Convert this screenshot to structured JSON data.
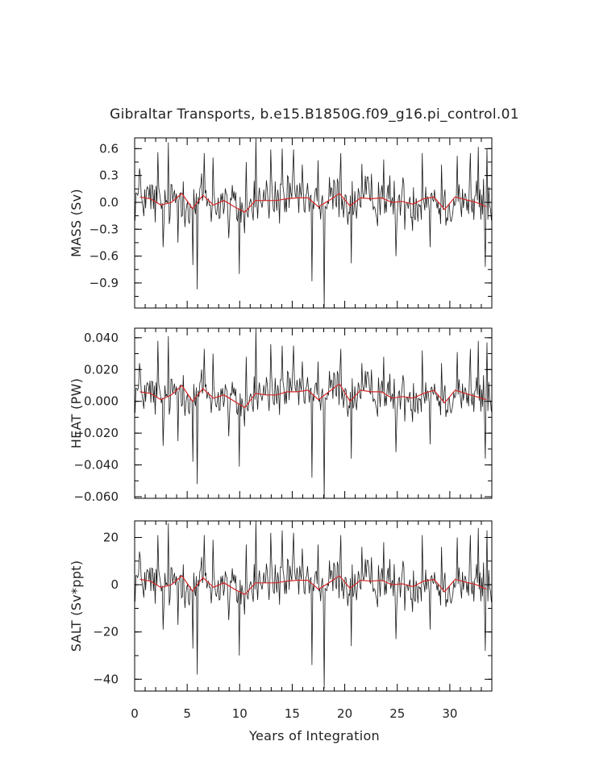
{
  "chart_data": {
    "title": "Gibraltar Transports, b.e15.B1850G.f09_g16.pi_control.01",
    "xlabel": "Years of Integration",
    "x_ticks": [
      "0",
      "5",
      "10",
      "15",
      "20",
      "25",
      "30"
    ],
    "xlim": [
      0,
      34
    ],
    "colors": {
      "monthly": "#1a1a1a",
      "annual": "#d62728"
    },
    "panels": [
      {
        "type": "line",
        "ylabel": "MASS (Sv)",
        "ylim": [
          -1.18,
          0.72
        ],
        "y_ticks": [
          {
            "value": 0.6,
            "label": "0.6"
          },
          {
            "value": 0.3,
            "label": "0.3"
          },
          {
            "value": 0.0,
            "label": "0.0"
          },
          {
            "value": -0.3,
            "label": "−0.3"
          },
          {
            "value": -0.6,
            "label": "−0.6"
          },
          {
            "value": -0.9,
            "label": "−0.9"
          }
        ],
        "series": [
          {
            "style": "monthly",
            "amplitude": 0.18,
            "spikes": [
              [
                0.4,
                0.38
              ],
              [
                2.2,
                0.56
              ],
              [
                2.7,
                -0.5
              ],
              [
                3.2,
                0.67
              ],
              [
                4.1,
                -0.45
              ],
              [
                5.5,
                -0.7
              ],
              [
                5.9,
                -0.97
              ],
              [
                6.6,
                0.55
              ],
              [
                7.4,
                0.5
              ],
              [
                8.9,
                -0.4
              ],
              [
                9.9,
                -0.8
              ],
              [
                10.6,
                0.45
              ],
              [
                11.5,
                0.72
              ],
              [
                12.9,
                0.59
              ],
              [
                14.0,
                0.6
              ],
              [
                15.1,
                0.59
              ],
              [
                16.8,
                -0.88
              ],
              [
                17.4,
                0.47
              ],
              [
                18.0,
                -1.17
              ],
              [
                19.6,
                0.55
              ],
              [
                20.6,
                -0.68
              ],
              [
                21.6,
                0.43
              ],
              [
                23.7,
                0.48
              ],
              [
                24.8,
                -0.6
              ],
              [
                27.3,
                0.55
              ],
              [
                28.1,
                -0.5
              ],
              [
                29.2,
                0.42
              ],
              [
                30.7,
                0.52
              ],
              [
                31.9,
                0.55
              ],
              [
                32.7,
                0.62
              ],
              [
                33.3,
                -0.72
              ],
              [
                33.5,
                0.6
              ]
            ]
          },
          {
            "style": "annual",
            "x": [
              0.5,
              1.5,
              2.5,
              3.5,
              4.5,
              5.5,
              6.5,
              7.5,
              8.5,
              9.5,
              10.5,
              11.5,
              12.5,
              13.5,
              14.5,
              15.5,
              16.5,
              17.5,
              18.5,
              19.5,
              20.5,
              21.5,
              22.5,
              23.5,
              24.5,
              25.5,
              26.5,
              27.5,
              28.5,
              29.5,
              30.5,
              31.5,
              32.5,
              33.5
            ],
            "values": [
              0.06,
              0.04,
              -0.03,
              0.0,
              0.1,
              -0.07,
              0.08,
              -0.03,
              0.02,
              -0.05,
              -0.11,
              0.02,
              0.02,
              0.02,
              0.04,
              0.05,
              0.05,
              -0.05,
              0.02,
              0.1,
              -0.04,
              0.05,
              0.04,
              0.05,
              0.0,
              0.01,
              -0.02,
              0.04,
              0.06,
              -0.08,
              0.06,
              0.03,
              0.0,
              -0.05
            ]
          }
        ]
      },
      {
        "type": "line",
        "ylabel": "HEAT (PW)",
        "ylim": [
          -0.061,
          0.046
        ],
        "y_ticks": [
          {
            "value": 0.04,
            "label": "0.040"
          },
          {
            "value": 0.02,
            "label": "0.020"
          },
          {
            "value": 0.0,
            "label": "0.000"
          },
          {
            "value": -0.02,
            "label": "−0.020"
          },
          {
            "value": -0.04,
            "label": "−0.040"
          },
          {
            "value": -0.06,
            "label": "−0.060"
          }
        ],
        "series": [
          {
            "style": "monthly",
            "amplitude": 0.009,
            "spikes": [
              [
                0.4,
                0.024
              ],
              [
                2.2,
                0.038
              ],
              [
                2.7,
                -0.028
              ],
              [
                3.2,
                0.041
              ],
              [
                4.1,
                -0.025
              ],
              [
                5.5,
                -0.038
              ],
              [
                5.9,
                -0.052
              ],
              [
                6.6,
                0.033
              ],
              [
                7.4,
                0.03
              ],
              [
                8.9,
                -0.022
              ],
              [
                9.9,
                -0.041
              ],
              [
                10.6,
                0.028
              ],
              [
                11.5,
                0.046
              ],
              [
                12.9,
                0.036
              ],
              [
                14.0,
                0.035
              ],
              [
                15.1,
                0.035
              ],
              [
                16.8,
                -0.048
              ],
              [
                17.4,
                0.025
              ],
              [
                18.0,
                -0.061
              ],
              [
                19.6,
                0.033
              ],
              [
                20.6,
                -0.036
              ],
              [
                21.6,
                0.024
              ],
              [
                23.7,
                0.028
              ],
              [
                24.8,
                -0.032
              ],
              [
                27.3,
                0.032
              ],
              [
                28.1,
                -0.027
              ],
              [
                29.2,
                0.024
              ],
              [
                30.7,
                0.031
              ],
              [
                31.9,
                0.033
              ],
              [
                32.7,
                0.038
              ],
              [
                33.3,
                -0.036
              ],
              [
                33.5,
                0.037
              ]
            ]
          },
          {
            "style": "annual",
            "x": [
              0.5,
              1.5,
              2.5,
              3.5,
              4.5,
              5.5,
              6.5,
              7.5,
              8.5,
              9.5,
              10.5,
              11.5,
              12.5,
              13.5,
              14.5,
              15.5,
              16.5,
              17.5,
              18.5,
              19.5,
              20.5,
              21.5,
              22.5,
              23.5,
              24.5,
              25.5,
              26.5,
              27.5,
              28.5,
              29.5,
              30.5,
              31.5,
              32.5,
              33.5
            ],
            "values": [
              0.006,
              0.005,
              0.001,
              0.004,
              0.01,
              0.0,
              0.008,
              0.002,
              0.004,
              0.0,
              -0.004,
              0.005,
              0.004,
              0.004,
              0.006,
              0.006,
              0.007,
              0.001,
              0.006,
              0.011,
              0.0,
              0.007,
              0.006,
              0.006,
              0.002,
              0.003,
              0.002,
              0.005,
              0.007,
              -0.001,
              0.007,
              0.005,
              0.003,
              0.001
            ]
          }
        ]
      },
      {
        "type": "line",
        "ylabel": "SALT (Sv*ppt)",
        "ylim": [
          -45,
          27
        ],
        "y_ticks": [
          {
            "value": 20,
            "label": "20"
          },
          {
            "value": 0,
            "label": "0"
          },
          {
            "value": -20,
            "label": "−20"
          },
          {
            "value": -40,
            "label": "−40"
          }
        ],
        "series": [
          {
            "style": "monthly",
            "amplitude": 6.5,
            "spikes": [
              [
                0.4,
                14
              ],
              [
                2.2,
                21
              ],
              [
                2.7,
                -19
              ],
              [
                3.2,
                26
              ],
              [
                4.1,
                -17
              ],
              [
                5.5,
                -27
              ],
              [
                5.9,
                -38
              ],
              [
                6.6,
                21
              ],
              [
                7.4,
                19
              ],
              [
                8.9,
                -15
              ],
              [
                9.9,
                -30
              ],
              [
                10.6,
                17
              ],
              [
                11.5,
                27
              ],
              [
                12.9,
                22
              ],
              [
                14.0,
                23
              ],
              [
                15.1,
                22
              ],
              [
                16.8,
                -34
              ],
              [
                17.4,
                17
              ],
              [
                18.0,
                -44
              ],
              [
                19.6,
                21
              ],
              [
                20.6,
                -26
              ],
              [
                21.6,
                16
              ],
              [
                23.7,
                18
              ],
              [
                24.8,
                -23
              ],
              [
                27.3,
                21
              ],
              [
                28.1,
                -19
              ],
              [
                29.2,
                16
              ],
              [
                30.7,
                20
              ],
              [
                31.9,
                21
              ],
              [
                32.7,
                24
              ],
              [
                33.3,
                -28
              ],
              [
                33.5,
                23
              ]
            ]
          },
          {
            "style": "annual",
            "x": [
              0.5,
              1.5,
              2.5,
              3.5,
              4.5,
              5.5,
              6.5,
              7.5,
              8.5,
              9.5,
              10.5,
              11.5,
              12.5,
              13.5,
              14.5,
              15.5,
              16.5,
              17.5,
              18.5,
              19.5,
              20.5,
              21.5,
              22.5,
              23.5,
              24.5,
              25.5,
              26.5,
              27.5,
              28.5,
              29.5,
              30.5,
              31.5,
              32.5,
              33.5
            ],
            "values": [
              2.3,
              1.5,
              -1.2,
              0.0,
              3.8,
              -2.7,
              3.0,
              -1.1,
              0.8,
              -1.9,
              -4.2,
              0.8,
              0.8,
              0.8,
              1.5,
              1.9,
              1.9,
              -1.9,
              0.8,
              3.8,
              -1.5,
              1.9,
              1.5,
              1.9,
              0.0,
              0.4,
              -0.8,
              1.5,
              2.3,
              -3.0,
              2.3,
              1.1,
              0.0,
              -1.9
            ]
          }
        ]
      }
    ]
  }
}
